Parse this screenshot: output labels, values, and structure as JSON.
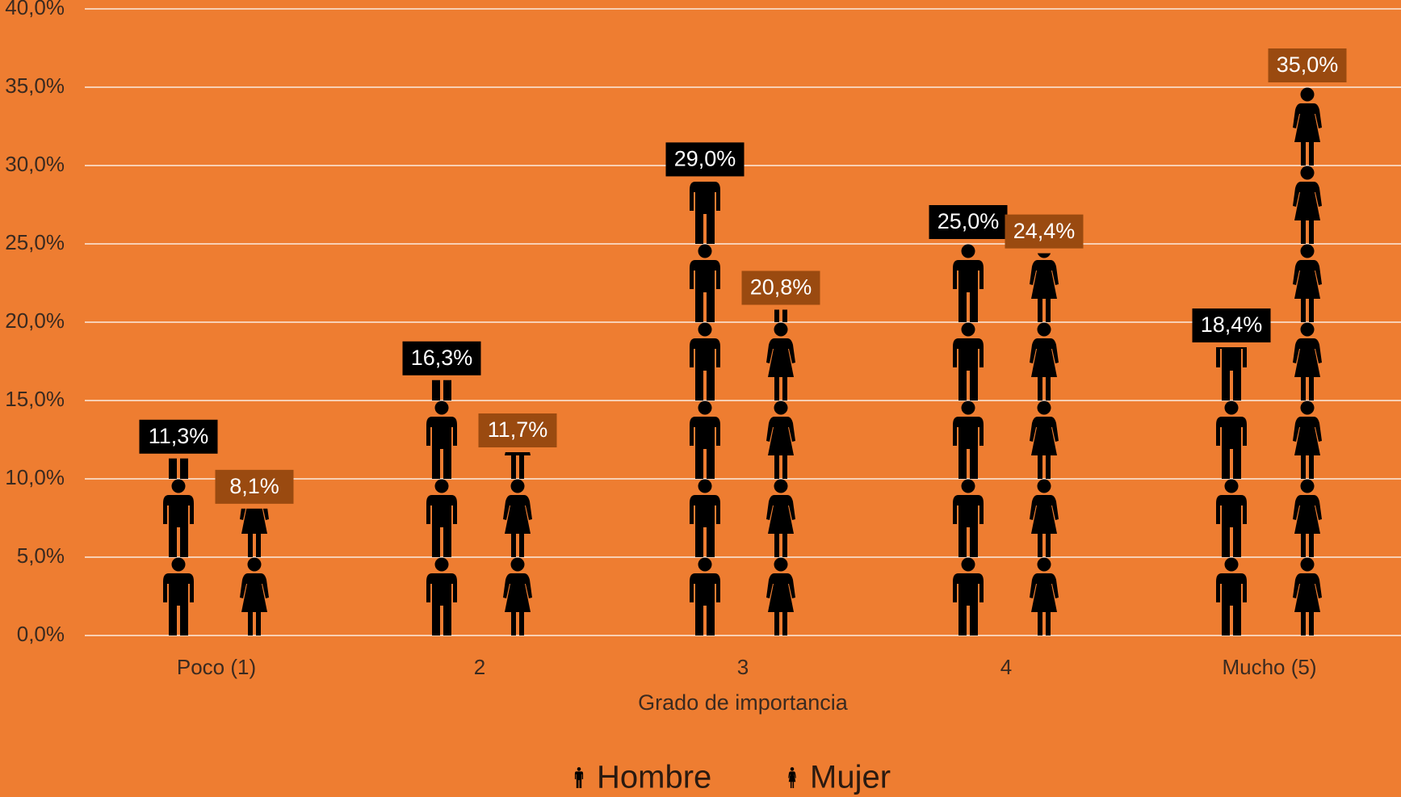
{
  "chart_data": {
    "type": "pictograph_bar",
    "x_label": "Grado de importancia",
    "categories": [
      "Poco (1)",
      "2",
      "3",
      "4",
      "Mucho (5)"
    ],
    "series": [
      {
        "name": "Hombre",
        "icon": "man",
        "color": "#000000",
        "label_color": "#000000",
        "values": [
          11.3,
          16.3,
          29.0,
          25.0,
          18.4
        ],
        "value_labels": [
          "11,3%",
          "16,3%",
          "29,0%",
          "25,0%",
          "18,4%"
        ]
      },
      {
        "name": "Mujer",
        "icon": "woman",
        "color": "#000000",
        "label_color": "#9a4a10",
        "values": [
          8.1,
          11.7,
          20.8,
          24.4,
          35.0
        ],
        "value_labels": [
          "8,1%",
          "11,7%",
          "20,8%",
          "24,4%",
          "35,0%"
        ]
      }
    ],
    "icon_unit": 5,
    "ylim": [
      0,
      40
    ],
    "yticks": [
      {
        "value": 0,
        "label": "0,0%"
      },
      {
        "value": 5,
        "label": "5,0%"
      },
      {
        "value": 10,
        "label": "10,0%"
      },
      {
        "value": 15,
        "label": "15,0%"
      },
      {
        "value": 20,
        "label": "20,0%"
      },
      {
        "value": 25,
        "label": "25,0%"
      },
      {
        "value": 30,
        "label": "30,0%"
      },
      {
        "value": 35,
        "label": "35,0%"
      },
      {
        "value": 40,
        "label": "40,0%"
      }
    ],
    "grid": true,
    "legend": "bottom"
  }
}
